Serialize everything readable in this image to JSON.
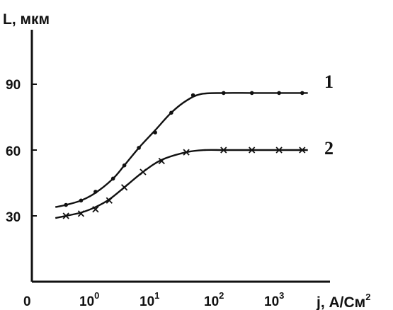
{
  "chart_data": {
    "type": "line",
    "ylabel": "L, мкм",
    "xlabel": "j, А/См",
    "xlabel_sup": "2",
    "x_scale": "log",
    "xlim": [
      0.2,
      5000
    ],
    "ylim": [
      0,
      110
    ],
    "y_ticks": [
      {
        "value": 30,
        "label": "30"
      },
      {
        "value": 60,
        "label": "60"
      },
      {
        "value": 90,
        "label": "90"
      }
    ],
    "x_origin_label": "0",
    "x_ticks": [
      {
        "value": 1,
        "base": "10",
        "exp": "0"
      },
      {
        "value": 10,
        "base": "10",
        "exp": "1"
      },
      {
        "value": 100,
        "base": "10",
        "exp": "2"
      },
      {
        "value": 1000,
        "base": "10",
        "exp": "3"
      }
    ],
    "grid": false,
    "series": [
      {
        "name": "1",
        "marker": "dot",
        "x": [
          0.4,
          0.7,
          1.2,
          2.3,
          3.5,
          6,
          11,
          20,
          45,
          140,
          400,
          1100,
          2600
        ],
        "y": [
          35,
          37,
          41,
          47,
          53,
          61,
          68,
          77,
          85,
          86,
          86,
          86,
          86
        ],
        "curve_x": [
          0.27,
          0.4,
          0.7,
          1.2,
          2.3,
          3.5,
          6,
          11,
          20,
          35,
          60,
          140,
          400,
          1100,
          3200
        ],
        "curve_y": [
          34,
          35,
          37,
          40.5,
          47,
          53,
          61,
          69,
          77,
          82.5,
          85.5,
          86,
          86,
          86,
          86
        ]
      },
      {
        "name": "2",
        "marker": "x",
        "x": [
          0.4,
          0.7,
          1.2,
          2,
          3.5,
          7,
          14,
          35,
          140,
          400,
          1100,
          2600
        ],
        "y": [
          30,
          31,
          33,
          37,
          43,
          50,
          55,
          59,
          60,
          60,
          60,
          60
        ],
        "curve_x": [
          0.27,
          0.4,
          0.7,
          1.2,
          2,
          3.5,
          7,
          14,
          35,
          70,
          140,
          400,
          1100,
          3200
        ],
        "curve_y": [
          29,
          30,
          31.5,
          34,
          37.5,
          43,
          50,
          55.5,
          59,
          60,
          60,
          60,
          60,
          60
        ]
      }
    ]
  }
}
